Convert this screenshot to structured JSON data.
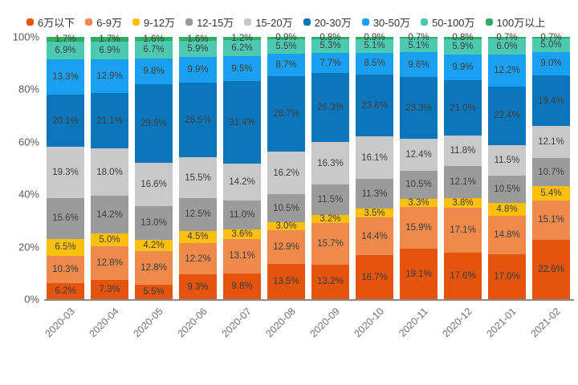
{
  "chart_data": {
    "type": "bar",
    "variant": "stacked-100-percent-column",
    "title": "",
    "legend_position": "top",
    "grid": false,
    "value_suffix": "%",
    "categories": [
      "2020-03",
      "2020-04",
      "2020-05",
      "2020-06",
      "2020-07",
      "2020-08",
      "2020-09",
      "2020-10",
      "2020-11",
      "2020-12",
      "2021-01",
      "2021-02"
    ],
    "series": [
      {
        "name": "6万以下",
        "color": "#e4540c",
        "values": [
          6.2,
          7.3,
          5.5,
          9.3,
          9.8,
          13.5,
          13.2,
          16.7,
          19.1,
          17.6,
          17.0,
          22.6
        ]
      },
      {
        "name": "6-9万",
        "color": "#f08a4c",
        "values": [
          10.3,
          12.8,
          12.8,
          12.2,
          13.1,
          12.9,
          15.7,
          14.4,
          15.9,
          17.1,
          14.8,
          15.1
        ]
      },
      {
        "name": "9-12万",
        "color": "#fdc00d",
        "values": [
          6.5,
          5.0,
          4.2,
          4.5,
          3.6,
          3.0,
          3.2,
          3.5,
          3.3,
          3.8,
          4.8,
          5.4
        ]
      },
      {
        "name": "12-15万",
        "color": "#9b9b9b",
        "values": [
          15.6,
          14.2,
          13.0,
          12.5,
          11.0,
          10.5,
          11.5,
          11.3,
          10.5,
          12.1,
          10.5,
          10.7
        ]
      },
      {
        "name": "15-20万",
        "color": "#c9c9c9",
        "values": [
          19.3,
          18.0,
          16.6,
          15.5,
          14.2,
          16.2,
          16.3,
          16.1,
          12.4,
          11.8,
          11.5,
          12.1
        ]
      },
      {
        "name": "20-30万",
        "color": "#0b76ba",
        "values": [
          20.1,
          21.1,
          29.8,
          28.5,
          31.4,
          28.7,
          26.3,
          23.6,
          23.3,
          21.0,
          22.4,
          19.4
        ]
      },
      {
        "name": "30-50万",
        "color": "#19a0f0",
        "values": [
          13.3,
          12.9,
          9.8,
          9.9,
          9.5,
          8.7,
          7.7,
          8.5,
          9.6,
          9.9,
          12.2,
          9.0
        ]
      },
      {
        "name": "50-100万",
        "color": "#4ec9b1",
        "values": [
          6.9,
          6.9,
          6.7,
          5.9,
          6.2,
          5.5,
          5.3,
          5.1,
          5.1,
          5.9,
          6.0,
          5.0
        ]
      },
      {
        "name": "100万以上",
        "color": "#2fad61",
        "values": [
          1.7,
          1.7,
          1.6,
          1.6,
          1.2,
          0.9,
          0.8,
          0.9,
          0.7,
          0.8,
          0.7,
          0.7
        ]
      }
    ],
    "y_axis": {
      "min": 0,
      "max": 100,
      "ticks": [
        {
          "value": 0,
          "label": "0%"
        },
        {
          "value": 20,
          "label": "20%"
        },
        {
          "value": 40,
          "label": "40%"
        },
        {
          "value": 60,
          "label": "60%"
        },
        {
          "value": 80,
          "label": "80%"
        },
        {
          "value": 100,
          "label": "100%"
        }
      ]
    }
  },
  "colors": {
    "background": "#ffffff",
    "axis_line": "#8c8c8c",
    "y_tick_text": "#595959",
    "x_tick_text": "#6e6e6e",
    "bar_label_text": "#3d3d3d"
  }
}
